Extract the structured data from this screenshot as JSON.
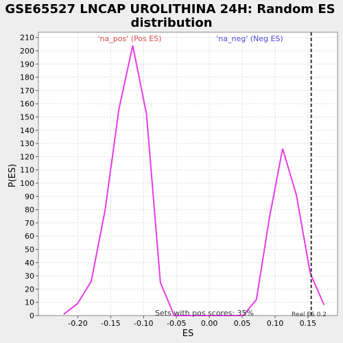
{
  "chart_data": {
    "type": "line",
    "title_line1": "GSE65527 LNCAP UROLITHINA 24H: Random ES",
    "title_line2": "distribution",
    "xlabel": "ES",
    "ylabel": "P(ES)",
    "xlim": [
      -0.26,
      0.195
    ],
    "ylim": [
      0,
      214
    ],
    "x_ticks": [
      -0.2,
      -0.15,
      -0.1,
      -0.05,
      0.0,
      0.05,
      0.1,
      0.15
    ],
    "x_tick_labels": [
      "-0.20",
      "-0.15",
      "-0.10",
      "-0.05",
      "0.00",
      "0.05",
      "0.10",
      "0.15"
    ],
    "y_ticks": [
      0,
      10,
      20,
      30,
      40,
      50,
      60,
      70,
      80,
      90,
      100,
      110,
      120,
      130,
      140,
      150,
      160,
      170,
      180,
      190,
      200,
      210
    ],
    "grid": true,
    "series": [
      {
        "color": "#e83ae8",
        "x": [
          -0.2216,
          -0.2005,
          -0.1795,
          -0.1585,
          -0.1375,
          -0.1165,
          -0.0955,
          -0.0745,
          -0.0535,
          -0.0325,
          -0.0115,
          0.0095,
          0.0305,
          0.0515,
          0.0715,
          0.0915,
          0.1115,
          0.1325,
          0.1535,
          0.1745
        ],
        "y": [
          1,
          9,
          26,
          80,
          156,
          204,
          152,
          25,
          0,
          0,
          0,
          0,
          0,
          0,
          12,
          74,
          126,
          91,
          32,
          8
        ]
      }
    ],
    "real_es": 0.155,
    "annotations": {
      "pos_label": "'na_pos' (Pos ES)",
      "neg_label": "'na_neg' (Neg ES)",
      "sets_text": "Sets with pos scores: 35%",
      "real_es_text": "Real ES 0.2"
    },
    "colors": {
      "pos_label": "#d64a4a",
      "neg_label": "#4a4ad6",
      "line": "#e83ae8",
      "grid": "#dddddd"
    }
  }
}
